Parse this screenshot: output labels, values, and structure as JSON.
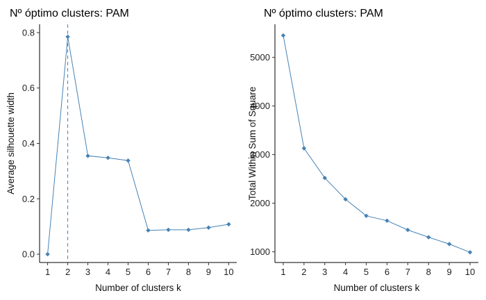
{
  "chart_data": [
    {
      "type": "line",
      "title": "Nº óptimo clusters: PAM",
      "xlabel": "Number of clusters k",
      "ylabel": "Average silhouette width",
      "x": [
        1,
        2,
        3,
        4,
        5,
        6,
        7,
        8,
        9,
        10
      ],
      "values": [
        0.0,
        0.785,
        0.355,
        0.348,
        0.338,
        0.086,
        0.088,
        0.088,
        0.096,
        0.108
      ],
      "xlim": [
        0.6,
        10.4
      ],
      "ylim": [
        -0.03,
        0.83
      ],
      "yticks": [
        0.0,
        0.2,
        0.4,
        0.6,
        0.8
      ],
      "ytick_labels": [
        "0.0",
        "0.2",
        "0.4",
        "0.6",
        "0.8"
      ],
      "xticks": [
        "1",
        "2",
        "3",
        "4",
        "5",
        "6",
        "7",
        "8",
        "9",
        "10"
      ],
      "reference_line_x": 2,
      "color": "#4682B4",
      "grid": false
    },
    {
      "type": "line",
      "title": "Nº óptimo clusters: PAM",
      "xlabel": "Number of clusters k",
      "ylabel": "Total Within Sum of Square",
      "x": [
        1,
        2,
        3,
        4,
        5,
        6,
        7,
        8,
        9,
        10
      ],
      "values": [
        5450,
        3130,
        2520,
        2080,
        1740,
        1640,
        1450,
        1300,
        1160,
        990
      ],
      "xlim": [
        0.6,
        10.4
      ],
      "ylim": [
        780,
        5680
      ],
      "yticks": [
        1000,
        2000,
        3000,
        4000,
        5000
      ],
      "ytick_labels": [
        "1000",
        "2000",
        "3000",
        "4000",
        "5000"
      ],
      "xticks": [
        "1",
        "2",
        "3",
        "4",
        "5",
        "6",
        "7",
        "8",
        "9",
        "10"
      ],
      "color": "#4682B4",
      "grid": false
    }
  ]
}
